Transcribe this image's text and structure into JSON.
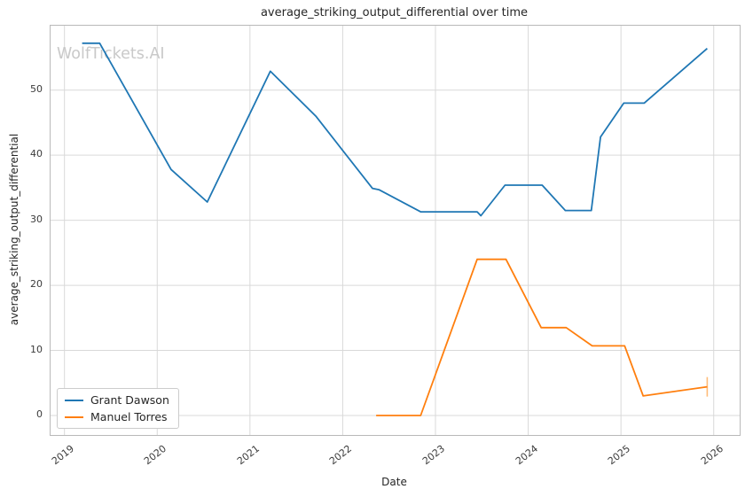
{
  "title": "average_striking_output_differential over time",
  "xlabel": "Date",
  "ylabel": "average_striking_output_differential",
  "watermark": "WolfTickets.AI",
  "colors": {
    "grant_dawson": "#1f77b4",
    "manuel_torres": "#ff7f0e",
    "grid": "#d9d9d9",
    "spine": "#b9b9b9",
    "text": "#262626",
    "tick_text": "#3b3b3b",
    "watermark": "#c9c9c9",
    "error_bar": "#ffbb78"
  },
  "legend": {
    "position": "lower left"
  },
  "chart_data": {
    "type": "line",
    "title": "average_striking_output_differential over time",
    "xlabel": "Date",
    "ylabel": "average_striking_output_differential",
    "grid": true,
    "legend_position": "lower left",
    "xlim": [
      2018.85,
      2026.28
    ],
    "ylim": [
      -3.0,
      59.9
    ],
    "x_ticks": [
      2019,
      2020,
      2021,
      2022,
      2023,
      2024,
      2025,
      2026
    ],
    "y_ticks": [
      0,
      10,
      20,
      30,
      40,
      50
    ],
    "series": [
      {
        "name": "Grant Dawson",
        "color": "#1f77b4",
        "x": [
          2019.19,
          2019.38,
          2020.15,
          2020.54,
          2021.22,
          2021.71,
          2022.32,
          2022.39,
          2022.84,
          2023.45,
          2023.49,
          2023.75,
          2024.15,
          2024.4,
          2024.68,
          2024.78,
          2025.03,
          2025.25,
          2025.93
        ],
        "y": [
          57.2,
          57.2,
          37.8,
          32.8,
          52.9,
          46.0,
          34.9,
          34.7,
          31.3,
          31.3,
          30.7,
          35.4,
          35.4,
          31.5,
          31.5,
          42.8,
          48.0,
          48.0,
          56.4
        ]
      },
      {
        "name": "Manuel Torres",
        "color": "#ff7f0e",
        "x": [
          2022.36,
          2022.84,
          2023.45,
          2023.76,
          2024.14,
          2024.41,
          2024.69,
          2025.04,
          2025.24,
          2025.93
        ],
        "y": [
          0.0,
          0.0,
          24.0,
          24.0,
          13.5,
          13.5,
          10.7,
          10.7,
          3.0,
          4.4
        ],
        "final_error_bar": {
          "x": 2025.93,
          "y": 4.4,
          "yerr": 1.5
        }
      }
    ]
  }
}
